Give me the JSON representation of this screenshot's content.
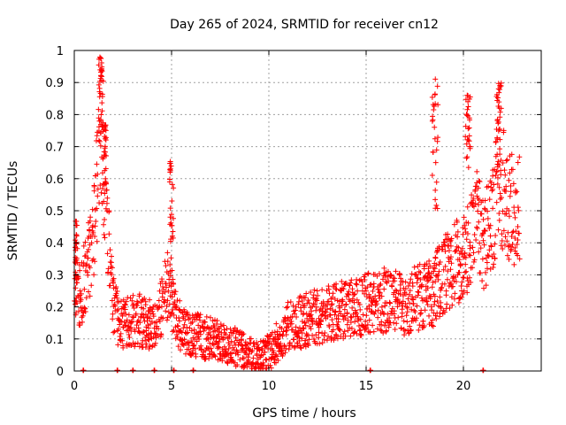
{
  "chart_data": {
    "type": "scatter",
    "title": "Day 265 of 2024, SRMTID for receiver cn12",
    "xlabel": "GPS time / hours",
    "ylabel": "SRMTID / TECUs",
    "xlim": [
      0,
      24
    ],
    "ylim": [
      0,
      1
    ],
    "x_ticks": [
      0,
      5,
      10,
      15,
      20
    ],
    "y_ticks": [
      0,
      0.1,
      0.2,
      0.3,
      0.4,
      0.5,
      0.6,
      0.7,
      0.8,
      0.9,
      1
    ],
    "grid": true,
    "marker": "+",
    "series_color": "#ff0000",
    "trend": [
      {
        "x": 0.0,
        "y": 0.3
      },
      {
        "x": 0.3,
        "y": 0.24
      },
      {
        "x": 0.6,
        "y": 0.3
      },
      {
        "x": 1.0,
        "y": 0.42
      },
      {
        "x": 1.2,
        "y": 0.62
      },
      {
        "x": 1.4,
        "y": 0.78
      },
      {
        "x": 1.6,
        "y": 0.58
      },
      {
        "x": 1.8,
        "y": 0.36
      },
      {
        "x": 2.0,
        "y": 0.22
      },
      {
        "x": 2.3,
        "y": 0.14
      },
      {
        "x": 2.7,
        "y": 0.15
      },
      {
        "x": 3.3,
        "y": 0.16
      },
      {
        "x": 3.8,
        "y": 0.14
      },
      {
        "x": 4.3,
        "y": 0.18
      },
      {
        "x": 4.8,
        "y": 0.26
      },
      {
        "x": 5.1,
        "y": 0.2
      },
      {
        "x": 5.6,
        "y": 0.12
      },
      {
        "x": 6.5,
        "y": 0.11
      },
      {
        "x": 7.5,
        "y": 0.09
      },
      {
        "x": 8.5,
        "y": 0.07
      },
      {
        "x": 9.5,
        "y": 0.04
      },
      {
        "x": 10.2,
        "y": 0.07
      },
      {
        "x": 11.0,
        "y": 0.14
      },
      {
        "x": 12.0,
        "y": 0.16
      },
      {
        "x": 13.0,
        "y": 0.18
      },
      {
        "x": 14.0,
        "y": 0.19
      },
      {
        "x": 15.0,
        "y": 0.21
      },
      {
        "x": 16.0,
        "y": 0.22
      },
      {
        "x": 17.0,
        "y": 0.21
      },
      {
        "x": 18.0,
        "y": 0.24
      },
      {
        "x": 18.5,
        "y": 0.25
      },
      {
        "x": 19.0,
        "y": 0.3
      },
      {
        "x": 19.6,
        "y": 0.34
      },
      {
        "x": 20.2,
        "y": 0.38
      },
      {
        "x": 20.6,
        "y": 0.5
      },
      {
        "x": 21.0,
        "y": 0.4
      },
      {
        "x": 21.5,
        "y": 0.45
      },
      {
        "x": 21.8,
        "y": 0.62
      },
      {
        "x": 22.2,
        "y": 0.55
      },
      {
        "x": 22.6,
        "y": 0.48
      },
      {
        "x": 22.9,
        "y": 0.5
      }
    ],
    "spikes": [
      {
        "x_start": 0.05,
        "x_end": 0.15,
        "y_min": 0.25,
        "y_max": 0.47
      },
      {
        "x_start": 1.25,
        "x_end": 1.45,
        "y_min": 0.7,
        "y_max": 0.98
      },
      {
        "x_start": 1.45,
        "x_end": 1.65,
        "y_min": 0.55,
        "y_max": 0.78
      },
      {
        "x_start": 4.9,
        "x_end": 5.1,
        "y_min": 0.3,
        "y_max": 0.66
      },
      {
        "x_start": 18.4,
        "x_end": 18.7,
        "y_min": 0.45,
        "y_max": 0.94
      },
      {
        "x_start": 20.1,
        "x_end": 20.35,
        "y_min": 0.62,
        "y_max": 0.86
      },
      {
        "x_start": 21.7,
        "x_end": 21.95,
        "y_min": 0.6,
        "y_max": 0.9
      }
    ],
    "zero_marks": [
      0.45,
      2.2,
      3.0,
      4.1,
      5.1,
      6.1,
      15.2,
      21.0
    ]
  }
}
